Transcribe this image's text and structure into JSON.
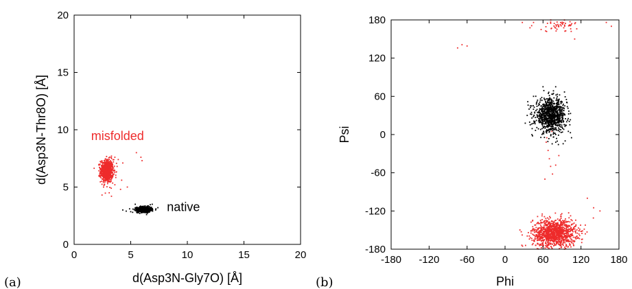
{
  "colors": {
    "misfolded": "#ee2b2b",
    "native": "#000000"
  },
  "chart_data": [
    {
      "type": "scatter",
      "panel_label": "(a)",
      "xlabel": "d(Asp3N-Gly7O) [Å]",
      "ylabel": "d(Asp3N-Thr8O) [Å]",
      "xlim": [
        0,
        20
      ],
      "ylim": [
        0,
        20
      ],
      "xticks": [
        0,
        5,
        10,
        15,
        20
      ],
      "yticks": [
        0,
        5,
        10,
        15,
        20
      ],
      "grid": false,
      "series": [
        {
          "name": "misfolded",
          "color": "#ee2b2b",
          "clusters": [
            {
              "cx": 2.9,
              "cy": 6.4,
              "sx": 0.28,
              "sy": 0.5,
              "n": 700
            }
          ],
          "points": [
            [
              3.3,
              7.7
            ],
            [
              3.6,
              7.6
            ],
            [
              3.9,
              7.4
            ],
            [
              4.3,
              7.1
            ],
            [
              3.6,
              5.2
            ],
            [
              4.2,
              5.6
            ],
            [
              4.7,
              5.0
            ],
            [
              5.5,
              8.0
            ],
            [
              5.9,
              7.6
            ],
            [
              6.0,
              7.3
            ],
            [
              3.1,
              4.5
            ],
            [
              3.3,
              4.2
            ],
            [
              2.6,
              5.0
            ],
            [
              3.8,
              6.8
            ],
            [
              4.1,
              4.8
            ]
          ]
        },
        {
          "name": "native",
          "color": "#000000",
          "clusters": [
            {
              "cx": 6.2,
              "cy": 3.05,
              "sx": 0.32,
              "sy": 0.12,
              "n": 700
            }
          ],
          "points": [
            [
              4.3,
              3.0
            ],
            [
              4.6,
              2.9
            ],
            [
              4.9,
              3.1
            ],
            [
              5.0,
              2.85
            ],
            [
              7.2,
              3.0
            ],
            [
              7.4,
              3.2
            ],
            [
              6.9,
              3.5
            ],
            [
              5.4,
              3.5
            ],
            [
              6.4,
              2.6
            ],
            [
              5.8,
              2.7
            ]
          ]
        }
      ],
      "annotations": [
        {
          "text": "misfolded",
          "x": 1.5,
          "y": 9.1,
          "color": "#ee2b2b"
        },
        {
          "text": "native",
          "x": 8.2,
          "y": 2.9,
          "color": "#000000"
        }
      ]
    },
    {
      "type": "scatter",
      "panel_label": "(b)",
      "xlabel": "Phi",
      "ylabel": "Psi",
      "xlim": [
        -180,
        180
      ],
      "ylim": [
        -180,
        180
      ],
      "xticks": [
        -180,
        -120,
        -60,
        0,
        60,
        120,
        180
      ],
      "yticks": [
        -180,
        -120,
        -60,
        0,
        60,
        120,
        180
      ],
      "grid": false,
      "series": [
        {
          "name": "misfolded",
          "color": "#ee2b2b",
          "clusters": [
            {
              "cx": 78,
              "cy": -155,
              "sx": 17,
              "sy": 11,
              "n": 1200
            },
            {
              "cx": 88,
              "cy": 172,
              "sx": 22,
              "sy": 5,
              "n": 55
            }
          ],
          "points": [
            [
              -75,
              136
            ],
            [
              -68,
              141
            ],
            [
              -60,
              139
            ],
            [
              65,
              -12
            ],
            [
              68,
              -25
            ],
            [
              70,
              -38
            ],
            [
              72,
              -50
            ],
            [
              75,
              -62
            ],
            [
              80,
              -48
            ],
            [
              66,
              -5
            ],
            [
              74,
              5
            ],
            [
              63,
              -70
            ],
            [
              85,
              -33
            ],
            [
              130,
              -100
            ],
            [
              140,
              -115
            ],
            [
              150,
              -120
            ],
            [
              160,
              176
            ],
            [
              168,
              170
            ],
            [
              45,
              176
            ],
            [
              110,
              150
            ]
          ]
        },
        {
          "name": "native",
          "color": "#000000",
          "clusters": [
            {
              "cx": 72,
              "cy": 30,
              "sx": 12,
              "sy": 13,
              "n": 900
            }
          ],
          "points": [
            [
              40,
              45
            ],
            [
              38,
              40
            ],
            [
              45,
              60
            ],
            [
              100,
              5
            ],
            [
              105,
              -5
            ],
            [
              95,
              -10
            ],
            [
              60,
              75
            ],
            [
              80,
              75
            ],
            [
              98,
              50
            ],
            [
              35,
              30
            ]
          ]
        }
      ],
      "annotations": []
    }
  ]
}
